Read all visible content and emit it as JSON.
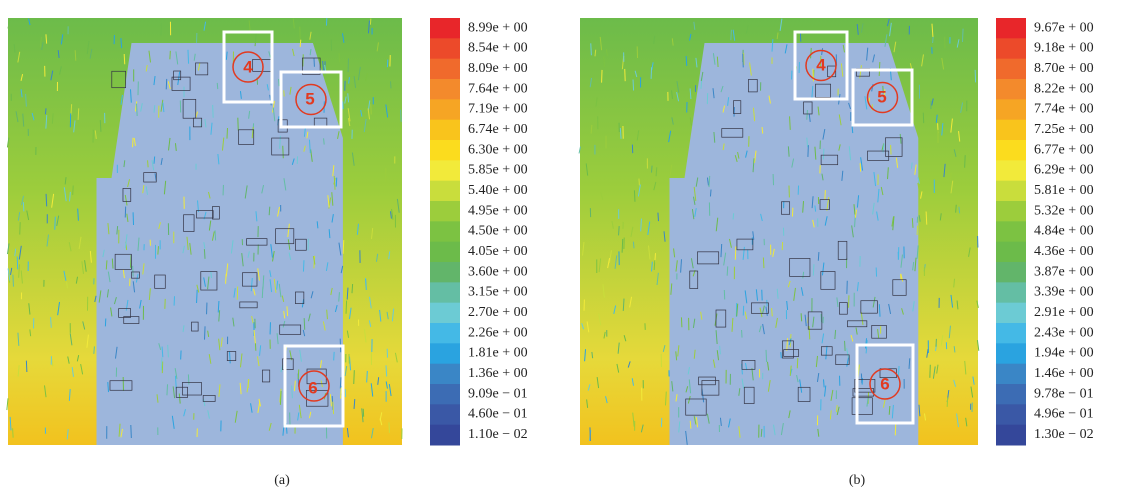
{
  "panels": [
    {
      "caption": "(a)",
      "markers": [
        "4",
        "5",
        "6"
      ],
      "colorbar_labels": [
        "8.99e + 00",
        "8.54e + 00",
        "8.09e + 00",
        "7.64e + 00",
        "7.19e + 00",
        "6.74e + 00",
        "6.30e + 00",
        "5.85e + 00",
        "5.40e + 00",
        "4.95e + 00",
        "4.50e + 00",
        "4.05e + 00",
        "3.60e + 00",
        "3.15e + 00",
        "2.70e + 00",
        "2.26e + 00",
        "1.81e + 00",
        "1.36e + 00",
        "9.09e − 01",
        "4.60e − 01",
        "1.10e − 02"
      ]
    },
    {
      "caption": "(b)",
      "markers": [
        "4",
        "5",
        "6"
      ],
      "colorbar_labels": [
        "9.67e + 00",
        "9.18e + 00",
        "8.70e + 00",
        "8.22e + 00",
        "7.74e + 00",
        "7.25e + 00",
        "6.77e + 00",
        "6.29e + 00",
        "5.81e + 00",
        "5.32e + 00",
        "4.84e + 00",
        "4.36e + 00",
        "3.87e + 00",
        "3.39e + 00",
        "2.91e + 00",
        "2.43e + 00",
        "1.94e + 00",
        "1.46e + 00",
        "9.78e − 01",
        "4.96e − 01",
        "1.30e − 02"
      ]
    }
  ],
  "colorbar_colors": [
    "#e8262a",
    "#ec4a2a",
    "#f06a2c",
    "#f38a2c",
    "#f6a524",
    "#f9c41c",
    "#fbdc1e",
    "#f2ea3a",
    "#c9dd3c",
    "#9ccd3c",
    "#7cc242",
    "#6cbb4a",
    "#62b56a",
    "#64bea4",
    "#6ccbd4",
    "#44b9e6",
    "#2aa3e0",
    "#3a86c6",
    "#3c6cb4",
    "#3a58a6",
    "#34479a"
  ]
}
